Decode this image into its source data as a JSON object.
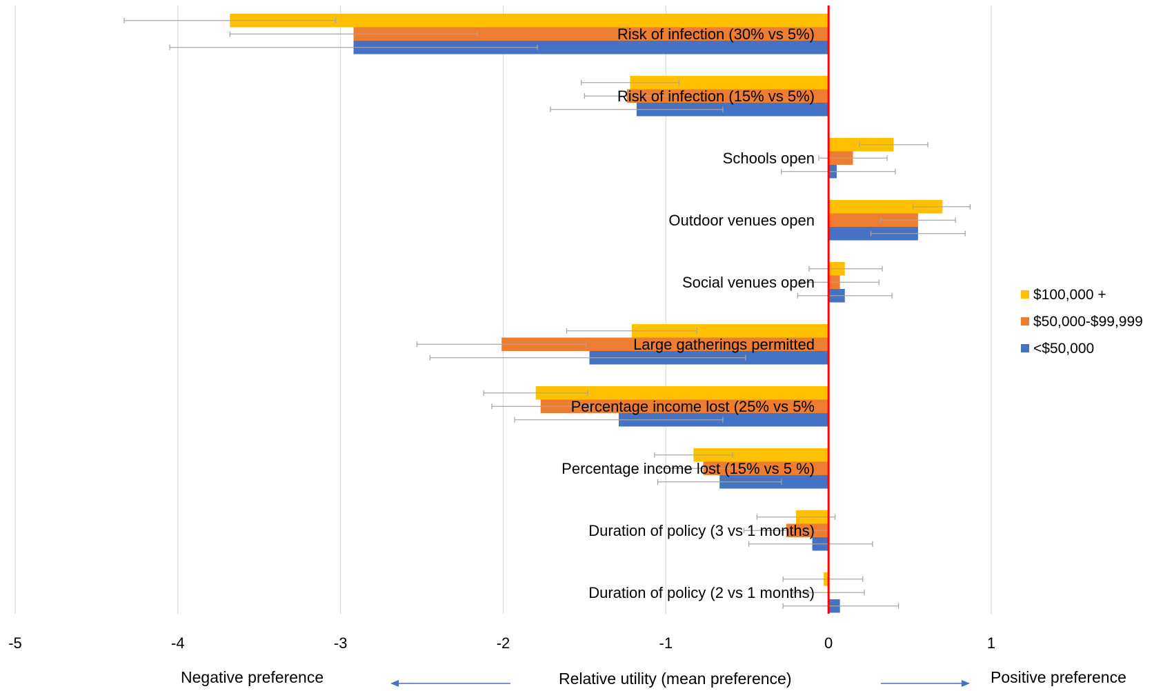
{
  "chart_data": {
    "type": "bar",
    "orientation": "horizontal",
    "title": "",
    "xlabel": "Relative utility (mean preference)",
    "left_annotation": "Negative preference",
    "right_annotation": "Positive preference",
    "xlim": [
      -5,
      1
    ],
    "x_ticks": [
      -5,
      -4,
      -3,
      -2,
      -1,
      0,
      1
    ],
    "grid": "vertical",
    "legend_position": "right",
    "categories": [
      "Risk of infection (30% vs 5%)",
      "Risk of infection (15% vs 5%)",
      "Schools open",
      "Outdoor venues open",
      "Social venues  open",
      "Large gatherings permitted",
      "Percentage income lost (25% vs 5%",
      "Percentage income lost (15% vs 5 %)",
      "Duration of policy (3 vs 1 months)",
      "Duration of policy (2 vs 1 months)"
    ],
    "series": [
      {
        "name": "$100,000 +",
        "color": "#FFC000",
        "values": [
          -3.68,
          -1.22,
          0.4,
          0.7,
          0.1,
          -1.21,
          -1.8,
          -0.83,
          -0.2,
          -0.03
        ],
        "ci": [
          [
            -4.33,
            -3.03
          ],
          [
            -1.52,
            -0.92
          ],
          [
            0.19,
            0.61
          ],
          [
            0.52,
            0.87
          ],
          [
            -0.12,
            0.33
          ],
          [
            -1.61,
            -0.81
          ],
          [
            -2.12,
            -1.48
          ],
          [
            -1.07,
            -0.59
          ],
          [
            -0.44,
            0.04
          ],
          [
            -0.28,
            0.21
          ]
        ]
      },
      {
        "name": "$50,000-$99,999",
        "color": "#ED7D31",
        "values": [
          -2.92,
          -1.24,
          0.15,
          0.55,
          0.07,
          -2.01,
          -1.77,
          -0.77,
          -0.26,
          0.0
        ],
        "ci": [
          [
            -3.68,
            -2.16
          ],
          [
            -1.5,
            -0.98
          ],
          [
            -0.06,
            0.36
          ],
          [
            0.32,
            0.78
          ],
          [
            -0.17,
            0.31
          ],
          [
            -2.53,
            -1.49
          ],
          [
            -2.07,
            -1.47
          ],
          [
            -1.04,
            -0.5
          ],
          [
            -0.52,
            0.0
          ],
          [
            -0.22,
            0.22
          ]
        ]
      },
      {
        "name": "<$50,000",
        "color": "#4472C4",
        "values": [
          -2.92,
          -1.18,
          0.05,
          0.55,
          0.1,
          -1.47,
          -1.29,
          -0.67,
          -0.1,
          0.07
        ],
        "ci": [
          [
            -4.05,
            -1.79
          ],
          [
            -1.71,
            -0.65
          ],
          [
            -0.29,
            0.41
          ],
          [
            0.26,
            0.84
          ],
          [
            -0.19,
            0.39
          ],
          [
            -2.45,
            -0.51
          ],
          [
            -1.93,
            -0.65
          ],
          [
            -1.05,
            -0.29
          ],
          [
            -0.49,
            0.27
          ],
          [
            -0.28,
            0.43
          ]
        ]
      }
    ],
    "reference_line": {
      "x": 0,
      "color": "#FF0000"
    }
  }
}
